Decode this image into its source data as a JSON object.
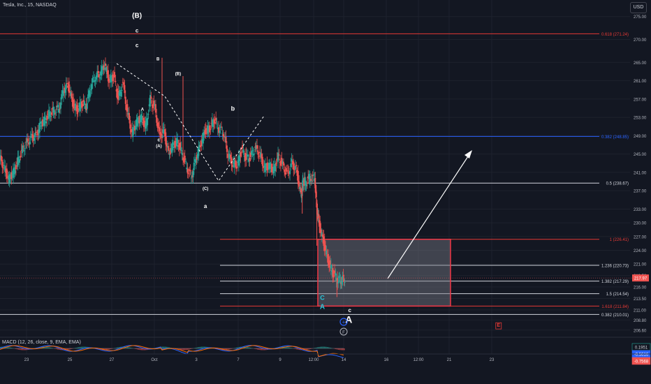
{
  "header": {
    "symbol": "Tesla, Inc., 15, NASDAQ",
    "currency": "USD"
  },
  "macd_label": "MACD (12, 26, close, 9, EMA, EMA)",
  "colors": {
    "background": "#131722",
    "grid": "#1e222d",
    "text": "#b2b5be",
    "up": "#26a69a",
    "down": "#ef5350",
    "fib_red": "#e53935",
    "fib_blue": "#2962ff",
    "fib_white": "#d1d4dc",
    "box_border": "#f23645",
    "box_fill": "rgba(120,123,134,0.45)",
    "price_tag": "#ef5350",
    "macd_blue": "#2962ff",
    "macd_orange": "#ff6d00",
    "wave_cyan": "#26c6da"
  },
  "chart_data": {
    "type": "candlestick",
    "title": "Tesla, Inc., 15, NASDAQ",
    "y_axis": {
      "ticks": [
        275.0,
        270.0,
        265.0,
        261.0,
        257.0,
        253.0,
        249.0,
        245.0,
        241.0,
        237.0,
        233.0,
        230.0,
        227.0,
        224.0,
        221.0,
        218.5,
        216.0,
        213.5,
        211.0,
        208.8,
        206.6
      ],
      "ylim": [
        205.5,
        278
      ]
    },
    "x_axis": {
      "ticks": [
        "23",
        "25",
        "27",
        "Oct",
        "3",
        "7",
        "9",
        "12:00",
        "14",
        "16",
        "12:00",
        "21",
        "23"
      ]
    },
    "last_price": "217.97",
    "fib_levels": [
      {
        "label": "0.618 (271.24)",
        "value": 271.24,
        "color": "red"
      },
      {
        "label": "0.382 (248.85)",
        "value": 248.85,
        "color": "blue"
      },
      {
        "label": "0.5 (238.67)",
        "value": 238.67,
        "color": "white"
      },
      {
        "label": "1 (226.41)",
        "value": 226.41,
        "color": "red"
      },
      {
        "label": "1.236 (220.73)",
        "value": 220.73,
        "color": "white"
      },
      {
        "label": "1.382 (217.29)",
        "value": 217.29,
        "color": "white"
      },
      {
        "label": "1.5 (214.54)",
        "value": 214.54,
        "color": "white"
      },
      {
        "label": "1.618 (211.84)",
        "value": 211.84,
        "color": "red"
      },
      {
        "label": "0.382 (210.01)",
        "value": 210.01,
        "color": "white"
      }
    ],
    "price_path": [
      [
        0,
        244.3
      ],
      [
        0.5,
        242
      ],
      [
        1,
        239.6
      ],
      [
        1.5,
        241
      ],
      [
        2,
        243.5
      ],
      [
        2.5,
        246
      ],
      [
        3,
        247.5
      ],
      [
        3.5,
        248.6
      ],
      [
        4,
        249
      ],
      [
        4.5,
        251.5
      ],
      [
        5,
        252.5
      ],
      [
        5.5,
        254
      ],
      [
        6,
        254.5
      ],
      [
        6.5,
        255
      ],
      [
        7,
        259
      ],
      [
        7.5,
        260
      ],
      [
        8,
        256
      ],
      [
        8.5,
        254.5
      ],
      [
        9,
        256
      ],
      [
        9.5,
        255.5
      ],
      [
        10,
        260
      ],
      [
        10.5,
        262
      ],
      [
        11,
        262.5
      ],
      [
        11.5,
        264.5
      ],
      [
        12,
        261
      ],
      [
        12.5,
        262
      ],
      [
        13,
        257
      ],
      [
        13.5,
        260.5
      ],
      [
        14,
        254
      ],
      [
        14.5,
        249.5
      ],
      [
        15,
        252
      ],
      [
        15.5,
        253
      ],
      [
        16,
        251
      ],
      [
        16.5,
        257
      ],
      [
        17,
        255
      ],
      [
        17.5,
        249
      ],
      [
        18,
        250
      ],
      [
        18.5,
        245
      ],
      [
        19,
        247
      ],
      [
        19.5,
        247.8
      ],
      [
        20,
        245
      ],
      [
        20.5,
        242
      ],
      [
        21,
        240
      ],
      [
        21.5,
        244
      ],
      [
        22,
        247
      ],
      [
        22.5,
        250
      ],
      [
        23,
        250.5
      ],
      [
        23.5,
        252.5
      ],
      [
        24,
        250.5
      ],
      [
        24.5,
        249.8
      ],
      [
        25,
        245
      ],
      [
        25.5,
        243
      ],
      [
        26,
        242.5
      ],
      [
        26.5,
        246
      ],
      [
        27,
        244
      ],
      [
        27.5,
        244.5
      ],
      [
        28,
        246.3
      ],
      [
        28.5,
        245
      ],
      [
        29,
        242
      ],
      [
        29.5,
        242.5
      ],
      [
        30,
        241.5
      ],
      [
        30.5,
        244.5
      ],
      [
        31,
        242.5
      ],
      [
        31.5,
        240.5
      ],
      [
        32,
        243
      ],
      [
        32.5,
        241.5
      ],
      [
        33,
        236
      ],
      [
        33.2,
        239
      ],
      [
        33.5,
        238.8
      ],
      [
        34,
        240
      ],
      [
        34.5,
        239.6
      ],
      [
        34.7,
        233.5
      ],
      [
        35,
        229.5
      ],
      [
        35.5,
        225.5
      ],
      [
        36,
        221.5
      ],
      [
        36.5,
        219
      ],
      [
        37,
        217.6
      ],
      [
        37.4,
        217.5
      ],
      [
        37.8,
        217.97
      ]
    ],
    "macd": {
      "value1": "0.1951",
      "value2": "-0.5616",
      "value3": "-0.7568"
    },
    "wave_labels": [
      {
        "text": "(B)",
        "x": 15,
        "y": 274.7,
        "color": "white",
        "size": 10
      },
      {
        "text": "c",
        "x": 15,
        "y": 271.5,
        "color": "white",
        "size": 8
      },
      {
        "text": "c",
        "x": 15,
        "y": 268.3,
        "color": "white",
        "size": 8
      },
      {
        "text": "B",
        "x": 17.3,
        "y": 265.4,
        "color": "white",
        "size": 6
      },
      {
        "text": "(B)",
        "x": 19.5,
        "y": 262.2,
        "color": "white",
        "size": 6
      },
      {
        "text": "A",
        "x": 15.6,
        "y": 254.5,
        "color": "white",
        "size": 6
      },
      {
        "text": "b",
        "x": 25.5,
        "y": 254.5,
        "color": "white",
        "size": 9
      },
      {
        "text": "c",
        "x": 17.4,
        "y": 247.8,
        "color": "white",
        "size": 7
      },
      {
        "text": "(A)",
        "x": 17.4,
        "y": 246.5,
        "color": "white",
        "size": 6
      },
      {
        "text": "(C)",
        "x": 22.5,
        "y": 237.2,
        "color": "white",
        "size": 6
      },
      {
        "text": "a",
        "x": 22.5,
        "y": 233.2,
        "color": "white",
        "size": 8
      },
      {
        "text": "C",
        "x": 35.3,
        "y": 213.2,
        "color": "cyan",
        "size": 9
      },
      {
        "text": "A",
        "x": 35.3,
        "y": 211.2,
        "color": "cyan",
        "size": 10
      },
      {
        "text": "c",
        "x": 38.3,
        "y": 210.5,
        "color": "white",
        "size": 8
      },
      {
        "text": "A",
        "x": 38.2,
        "y": 208.2,
        "color": "white",
        "size": 14
      },
      {
        "text": "E",
        "x": 54.6,
        "y": 207.3,
        "color": "red",
        "size": 7
      }
    ],
    "legend": "none",
    "grid": true
  }
}
